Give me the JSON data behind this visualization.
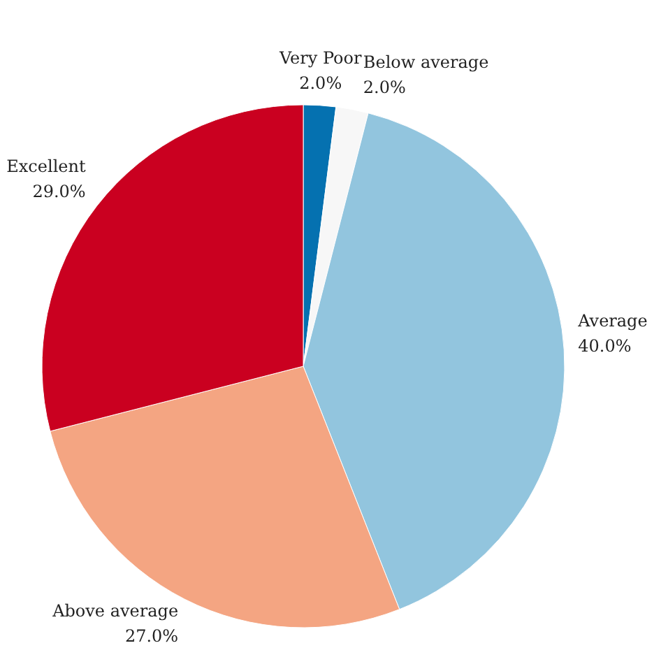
{
  "chart_data": {
    "type": "pie",
    "categories": [
      "Very Poor",
      "Below average",
      "Average",
      "Above average",
      "Excellent"
    ],
    "values": [
      2,
      2,
      40,
      27,
      29
    ],
    "colors": [
      "#0571b0",
      "#f7f7f7",
      "#92c5de",
      "#f4a582",
      "#ca0020"
    ],
    "value_labels": [
      "2.0%",
      "2.0%",
      "40.0%",
      "27.0%",
      "29.0%"
    ]
  }
}
